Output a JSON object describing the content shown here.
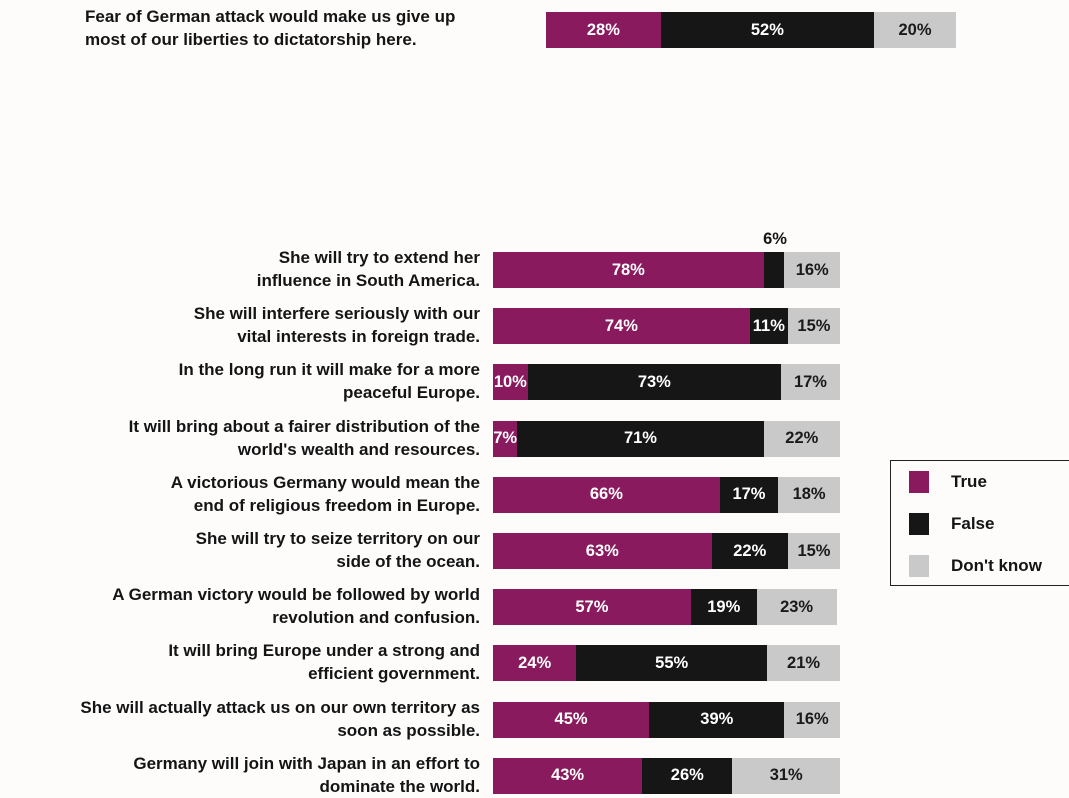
{
  "colors": {
    "true": "#8a1a5e",
    "false": "#161616",
    "dont_know": "#c9c9c9"
  },
  "legend": {
    "items": [
      {
        "key": "true",
        "label": "True"
      },
      {
        "key": "false",
        "label": "False"
      },
      {
        "key": "dont_know",
        "label": "Don't know"
      }
    ]
  },
  "chart_data": [
    {
      "type": "bar",
      "orientation": "horizontal",
      "stacked": true,
      "categories": [
        "Fear of German attack would make us give up most of our liberties to dictatorship here."
      ],
      "category_lines": [
        [
          "Fear of German attack would make us give up",
          "most of our liberties to dictatorship here."
        ]
      ],
      "series": [
        {
          "name": "True",
          "values": [
            28
          ]
        },
        {
          "name": "False",
          "values": [
            52
          ]
        },
        {
          "name": "Don't know",
          "values": [
            20
          ]
        }
      ],
      "value_labels": [
        [
          "28%",
          "52%",
          "20%"
        ]
      ]
    },
    {
      "type": "bar",
      "orientation": "horizontal",
      "stacked": true,
      "categories": [
        "She will try to extend her influence in South America.",
        "She will interfere seriously with our vital interests in foreign trade.",
        "In the long run it will make for a more peaceful Europe.",
        "It will bring about a fairer distribution of the world's wealth and resources.",
        "A victorious Germany would mean the end of religious freedom in Europe.",
        "She will try to seize territory on our side of the ocean.",
        "A German victory would be followed by world revolution and confusion.",
        "It will bring Europe under a strong and efficient government.",
        "She will actually attack us on our own territory as soon as possible.",
        "Germany will join with Japan in an effort to dominate the world."
      ],
      "category_lines": [
        [
          "She will try to extend her",
          "influence in South America."
        ],
        [
          "She will interfere seriously with our",
          "vital interests in foreign trade."
        ],
        [
          "In the long run it will make for a more",
          "peaceful Europe."
        ],
        [
          "It will bring about a fairer distribution of the",
          "world's wealth and resources."
        ],
        [
          "A victorious Germany would mean the",
          "end of religious freedom in Europe."
        ],
        [
          "She will try to seize territory on our",
          "side of the ocean."
        ],
        [
          "A German victory would be followed by world",
          "revolution and confusion."
        ],
        [
          "It will bring Europe under a strong and",
          "efficient government."
        ],
        [
          "She will actually attack us on our own territory as",
          "soon as possible."
        ],
        [
          "Germany will join with Japan in an effort to",
          "dominate the world."
        ]
      ],
      "series": [
        {
          "name": "True",
          "values": [
            78,
            74,
            10,
            7,
            66,
            63,
            57,
            24,
            45,
            43
          ]
        },
        {
          "name": "False",
          "values": [
            6,
            11,
            73,
            71,
            17,
            22,
            19,
            55,
            39,
            26
          ]
        },
        {
          "name": "Don't know",
          "values": [
            16,
            15,
            17,
            22,
            18,
            15,
            23,
            21,
            16,
            31
          ]
        }
      ],
      "value_labels": [
        [
          "78%",
          "6%",
          "16%"
        ],
        [
          "74%",
          "11%",
          "15%"
        ],
        [
          "10%",
          "73%",
          "17%"
        ],
        [
          "7%",
          "71%",
          "22%"
        ],
        [
          "66%",
          "17%",
          "18%"
        ],
        [
          "63%",
          "22%",
          "15%"
        ],
        [
          "57%",
          "19%",
          "23%"
        ],
        [
          "24%",
          "55%",
          "21%"
        ],
        [
          "45%",
          "39%",
          "16%"
        ],
        [
          "43%",
          "26%",
          "31%"
        ]
      ]
    }
  ]
}
